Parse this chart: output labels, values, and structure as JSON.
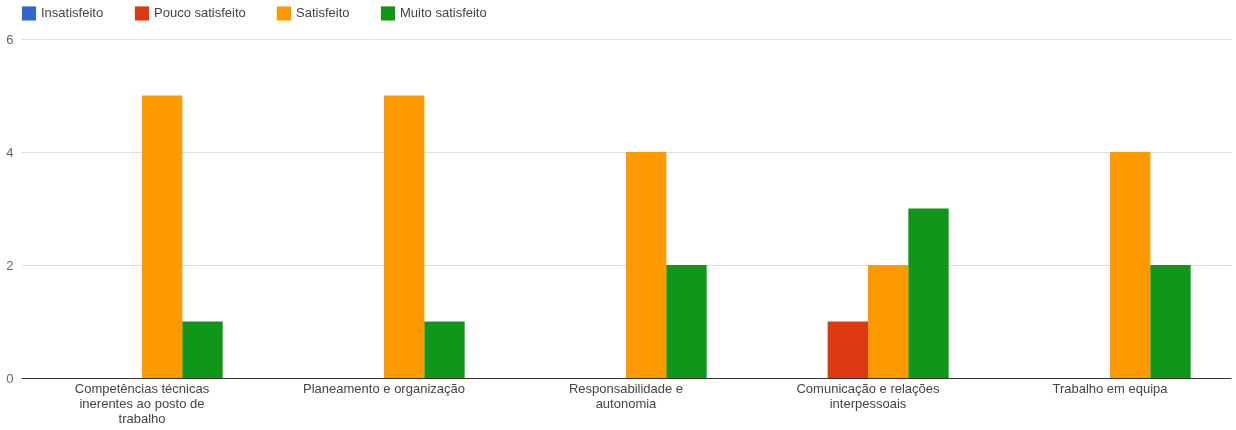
{
  "chart_data": {
    "type": "bar",
    "categories": [
      "Competências técnicas inerentes ao posto de trabalho",
      "Planeamento e organização",
      "Responsabilidade e autonomia",
      "Comunicação e relações interpessoais",
      "Trabalho em equipa"
    ],
    "series": [
      {
        "name": "Insatisfeito",
        "color": "#3366cc",
        "values": [
          0,
          0,
          0,
          0,
          0
        ]
      },
      {
        "name": "Pouco satisfeito",
        "color": "#dc3912",
        "values": [
          0,
          0,
          0,
          1,
          0
        ]
      },
      {
        "name": "Satisfeito",
        "color": "#ff9900",
        "values": [
          5,
          5,
          4,
          2,
          4
        ]
      },
      {
        "name": "Muito satisfeito",
        "color": "#109618",
        "values": [
          1,
          1,
          2,
          3,
          2
        ]
      }
    ],
    "ylim": [
      0,
      6
    ],
    "yticks": [
      0,
      2,
      4,
      6
    ],
    "grid": "y",
    "legend": "top left"
  }
}
